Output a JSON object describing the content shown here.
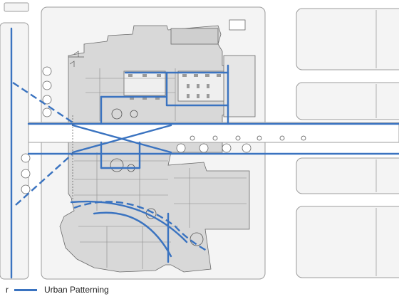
{
  "colors": {
    "pattern_blue": "#3a73c0",
    "block_fill": "#f3f3f3",
    "block_stroke": "#9a9a9a",
    "building_fill": "#d4d4d4",
    "line_dark": "#555555"
  },
  "legend": {
    "items": [
      {
        "label": "r",
        "style": "dashed"
      },
      {
        "label": "Urban Patterning",
        "style": "solid"
      }
    ]
  }
}
